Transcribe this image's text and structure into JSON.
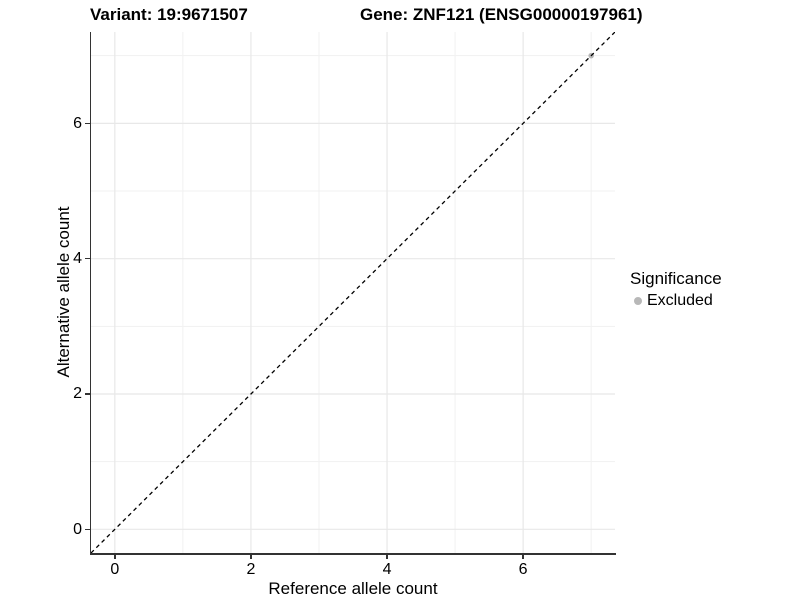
{
  "titles": {
    "variant": "Variant: 19:9671507",
    "gene": "Gene: ZNF121 (ENSG00000197961)"
  },
  "chart_data": {
    "type": "scatter",
    "xlabel": "Reference allele count",
    "ylabel": "Alternative allele count",
    "xlim": [
      -0.35,
      7.35
    ],
    "ylim": [
      -0.35,
      7.35
    ],
    "x_ticks": [
      0,
      2,
      4,
      6
    ],
    "y_ticks": [
      0,
      2,
      4,
      6
    ],
    "x_minor_ticks": [
      1,
      3,
      5,
      7
    ],
    "y_minor_ticks": [
      1,
      3,
      5,
      7
    ],
    "grid": true,
    "identity_line": {
      "slope": 1,
      "intercept": 0,
      "style": "dashed",
      "color": "#000000"
    },
    "series": [
      {
        "name": "Excluded",
        "color": "#b8b8b8",
        "points": [
          [
            7,
            7
          ]
        ]
      }
    ],
    "legend": {
      "title": "Significance",
      "position": "right",
      "items": [
        {
          "label": "Excluded",
          "color": "#b8b8b8"
        }
      ]
    }
  },
  "style_colors": {
    "major_grid": "#e8e8e8",
    "minor_grid": "#f1f1f1",
    "axis_line": "#333333"
  }
}
